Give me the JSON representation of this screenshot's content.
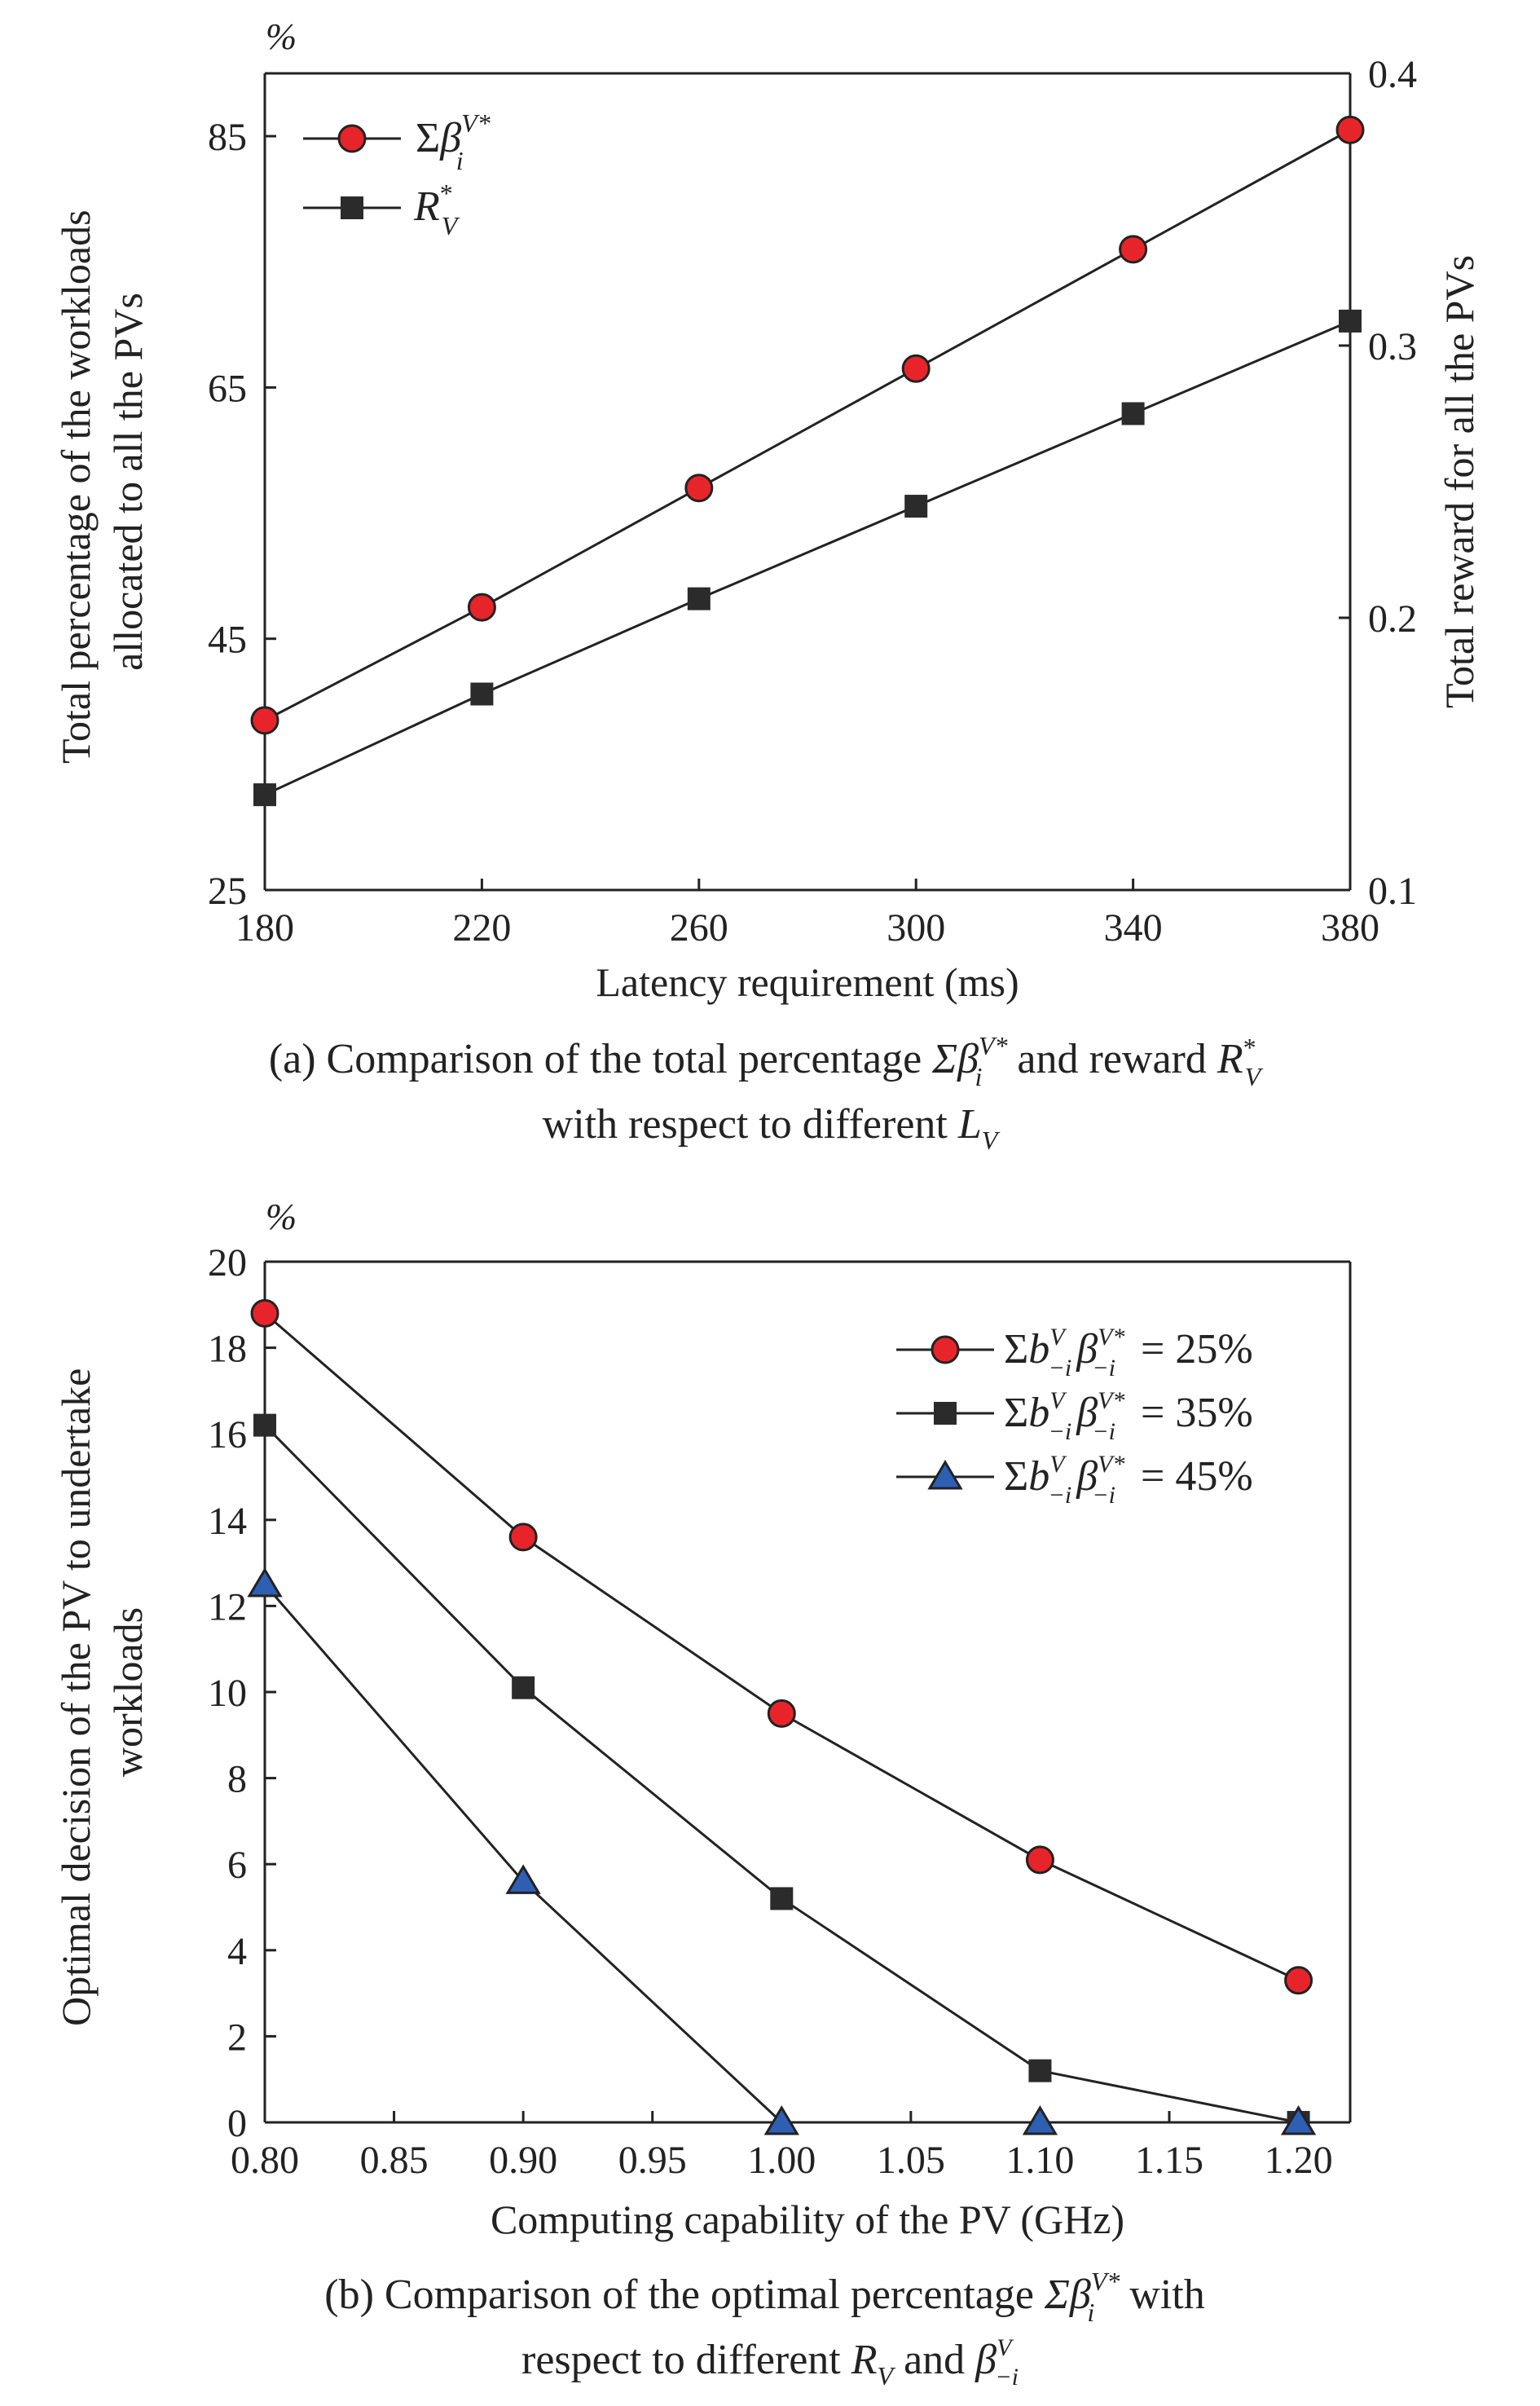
{
  "chart_data": [
    {
      "type": "line",
      "panel": "a",
      "x": [
        180,
        220,
        260,
        300,
        340,
        380
      ],
      "xlim": [
        180,
        380
      ],
      "xticks": [
        "180",
        "220",
        "260",
        "300",
        "340",
        "380"
      ],
      "xlabel": "Latency requirement  (ms)",
      "ylabel_left": [
        "Total percentage of the workloads",
        "allocated to all the PVs"
      ],
      "ylabel_right": "Total reward  for all the PVs",
      "ylim_left": [
        25,
        90
      ],
      "yticks_left": [
        "25",
        "45",
        "65",
        "85"
      ],
      "ylim_right": [
        0.1,
        0.4
      ],
      "yticks_right": [
        "0.1",
        "0.2",
        "0.3",
        "0.4"
      ],
      "unit_left": "%",
      "legend_position": "top-left",
      "grid": false,
      "series": [
        {
          "name": "Σβ_i^{V*}",
          "axis": "left",
          "marker": "circle",
          "color": "#e8242b",
          "values": [
            38.5,
            47.5,
            57.0,
            66.5,
            76.0,
            85.5
          ]
        },
        {
          "name": "R_V^*",
          "axis": "right",
          "marker": "square",
          "color": "#2b2b2b",
          "values": [
            0.135,
            0.172,
            0.207,
            0.241,
            0.275,
            0.309
          ]
        }
      ],
      "caption": {
        "line1_pre": "(a) Comparison of the total percentage ",
        "line1_sym1": "Σβ",
        "line1_mid": " and reward ",
        "line1_sym2": "R",
        "line2_pre": "with respect to different ",
        "line2_sym": "L"
      }
    },
    {
      "type": "line",
      "panel": "b",
      "x": [
        0.8,
        0.9,
        1.0,
        1.1,
        1.2
      ],
      "xlim": [
        0.8,
        1.22
      ],
      "xticks": [
        "0.80",
        "0.85",
        "0.90",
        "0.95",
        "1.00",
        "1.05",
        "1.10",
        "1.15",
        "1.20"
      ],
      "xlabel": "Computing capability of the PV (GHz)",
      "ylabel": [
        "Optimal decision of  the PV to undertake",
        "workloads"
      ],
      "ylim": [
        0,
        20
      ],
      "yticks": [
        "0",
        "2",
        "4",
        "6",
        "8",
        "10",
        "12",
        "14",
        "16",
        "18",
        "20"
      ],
      "unit": "%",
      "legend_position": "top-right",
      "grid": false,
      "series": [
        {
          "name": "Σb_{-i}^V β_{-i}^{V*} = 25%",
          "marker": "circle",
          "color": "#e8242b",
          "values": [
            18.8,
            13.6,
            9.5,
            6.1,
            3.3
          ]
        },
        {
          "name": "Σb_{-i}^V β_{-i}^{V*} = 35%",
          "marker": "square",
          "color": "#2b2b2b",
          "values": [
            16.2,
            10.1,
            5.2,
            1.2,
            0.0
          ]
        },
        {
          "name": "Σb_{-i}^V β_{-i}^{V*} = 45%",
          "marker": "triangle",
          "color": "#2f5fb3",
          "values": [
            12.5,
            5.6,
            0.0,
            0.0,
            0.0
          ]
        }
      ],
      "caption": {
        "line1_pre": "(b) Comparison of the optimal percentage ",
        "line1_sym": "Σβ",
        "line1_post": " with",
        "line2_pre": "respect to different ",
        "line2_sym1": "R",
        "line2_mid": " and  ",
        "line2_sym2": "β"
      }
    }
  ]
}
